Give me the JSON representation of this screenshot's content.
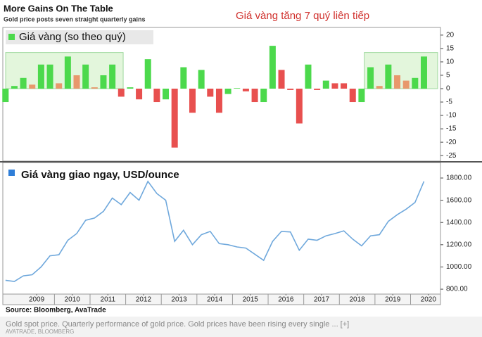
{
  "header": {
    "title": "More Gains On The Table",
    "subtitle": "Gold price posts seven straight quarterly gains",
    "annotation": "Giá vàng tăng 7 quý liên tiếp"
  },
  "chart_data": [
    {
      "type": "bar",
      "x": [
        2008.625,
        2008.875,
        2009.125,
        2009.375,
        2009.625,
        2009.875,
        2010.125,
        2010.375,
        2010.625,
        2010.875,
        2011.125,
        2011.375,
        2011.625,
        2011.875,
        2012.125,
        2012.375,
        2012.625,
        2012.875,
        2013.125,
        2013.375,
        2013.625,
        2013.875,
        2014.125,
        2014.375,
        2014.625,
        2014.875,
        2015.125,
        2015.375,
        2015.625,
        2015.875,
        2016.125,
        2016.375,
        2016.625,
        2016.875,
        2017.125,
        2017.375,
        2017.625,
        2017.875,
        2018.125,
        2018.375,
        2018.625,
        2018.875,
        2019.125,
        2019.375,
        2019.625,
        2019.875,
        2020.125,
        2020.375
      ],
      "series": [
        {
          "name": "Giá vàng (so theo quý)",
          "color": "#4cd94c",
          "values": [
            -5,
            1,
            4,
            1.5,
            9,
            9,
            2,
            12,
            5,
            9,
            0.5,
            5,
            9,
            -3,
            0.5,
            -4,
            11,
            -5,
            -4,
            -22,
            8,
            -9,
            7,
            -3,
            -9,
            -2,
            0.2,
            -1,
            -5,
            -5,
            16,
            7,
            -0.5,
            -13,
            9,
            -0.5,
            3,
            2,
            2,
            -5,
            -5,
            8,
            1,
            9,
            5,
            3,
            4,
            12
          ],
          "colors": [
            "#4cd94c",
            "#4cd94c",
            "#4cd94c",
            "#e8986c",
            "#4cd94c",
            "#4cd94c",
            "#e8986c",
            "#4cd94c",
            "#e8986c",
            "#4cd94c",
            "#e8986c",
            "#4cd94c",
            "#4cd94c",
            "#e8504f",
            "#4cd94c",
            "#e8504f",
            "#4cd94c",
            "#e8504f",
            "#4cd94c",
            "#e8504f",
            "#4cd94c",
            "#e8504f",
            "#4cd94c",
            "#e8504f",
            "#e8504f",
            "#4cd94c",
            "#4cd94c",
            "#e8504f",
            "#e8504f",
            "#4cd94c",
            "#4cd94c",
            "#e8504f",
            "#e8504f",
            "#e8504f",
            "#4cd94c",
            "#e8504f",
            "#4cd94c",
            "#e8504f",
            "#e8504f",
            "#e8504f",
            "#4cd94c",
            "#4cd94c",
            "#e8986c",
            "#4cd94c",
            "#e8986c",
            "#e8986c",
            "#4cd94c",
            "#4cd94c"
          ]
        }
      ],
      "highlights": [
        {
          "xlim": [
            2008.63,
            2011.93
          ],
          "ylim": [
            0,
            13.5
          ]
        },
        {
          "xlim": [
            2018.7,
            2020.76
          ],
          "ylim": [
            0,
            13.5
          ]
        }
      ],
      "xlim": [
        2008.57,
        2020.82
      ],
      "ylim": [
        -26.8,
        22.6
      ],
      "yticks": [
        20,
        15,
        10,
        5,
        0,
        -5,
        -10,
        -15,
        -20,
        -25
      ]
    },
    {
      "type": "line",
      "x": [
        2008.625,
        2008.875,
        2009.125,
        2009.375,
        2009.625,
        2009.875,
        2010.125,
        2010.375,
        2010.625,
        2010.875,
        2011.125,
        2011.375,
        2011.625,
        2011.875,
        2012.125,
        2012.375,
        2012.625,
        2012.875,
        2013.125,
        2013.375,
        2013.625,
        2013.875,
        2014.125,
        2014.375,
        2014.625,
        2014.875,
        2015.125,
        2015.375,
        2015.625,
        2015.875,
        2016.125,
        2016.375,
        2016.625,
        2016.875,
        2017.125,
        2017.375,
        2017.625,
        2017.875,
        2018.125,
        2018.375,
        2018.625,
        2018.875,
        2019.125,
        2019.375,
        2019.625,
        2019.875,
        2020.125,
        2020.375
      ],
      "series": [
        {
          "name": "Giá vàng giao ngay, USD/ounce",
          "color": "#6fa8dc",
          "legend_color": "#2f7ed8",
          "values": [
            880,
            870,
            920,
            930,
            1000,
            1100,
            1110,
            1240,
            1300,
            1420,
            1440,
            1500,
            1620,
            1560,
            1670,
            1600,
            1770,
            1660,
            1600,
            1230,
            1330,
            1200,
            1290,
            1320,
            1210,
            1200,
            1180,
            1170,
            1115,
            1060,
            1230,
            1320,
            1315,
            1150,
            1250,
            1240,
            1280,
            1300,
            1325,
            1250,
            1190,
            1280,
            1290,
            1410,
            1470,
            1520,
            1580,
            1770
          ]
        }
      ],
      "xlim": [
        2008.57,
        2020.82
      ],
      "ylim": [
        756,
        1933
      ],
      "xticks": [
        {
          "value": 2009.5,
          "label": "2009"
        },
        {
          "value": 2010.5,
          "label": "2010"
        },
        {
          "value": 2011.5,
          "label": "2011"
        },
        {
          "value": 2012.5,
          "label": "2012"
        },
        {
          "value": 2013.5,
          "label": "2013"
        },
        {
          "value": 2014.5,
          "label": "2014"
        },
        {
          "value": 2015.5,
          "label": "2015"
        },
        {
          "value": 2016.5,
          "label": "2016"
        },
        {
          "value": 2017.5,
          "label": "2017"
        },
        {
          "value": 2018.5,
          "label": "2018"
        },
        {
          "value": 2019.5,
          "label": "2019"
        },
        {
          "value": 2020.5,
          "label": "2020"
        }
      ],
      "yticks": [
        {
          "value": 1800,
          "label": "1800.00"
        },
        {
          "value": 1600,
          "label": "1600.00"
        },
        {
          "value": 1400,
          "label": "1400.00"
        },
        {
          "value": 1200,
          "label": "1200.00"
        },
        {
          "value": 1000,
          "label": "1000.00"
        },
        {
          "value": 800,
          "label": "800.00"
        }
      ]
    }
  ],
  "footer": {
    "source": "Source: Bloomberg, AvaTrade",
    "caption": "Gold spot price. Quarterly performance of gold price. Gold prices have been rising every single ... [+]",
    "credit": "AVATRADE, BLOOMBERG"
  }
}
